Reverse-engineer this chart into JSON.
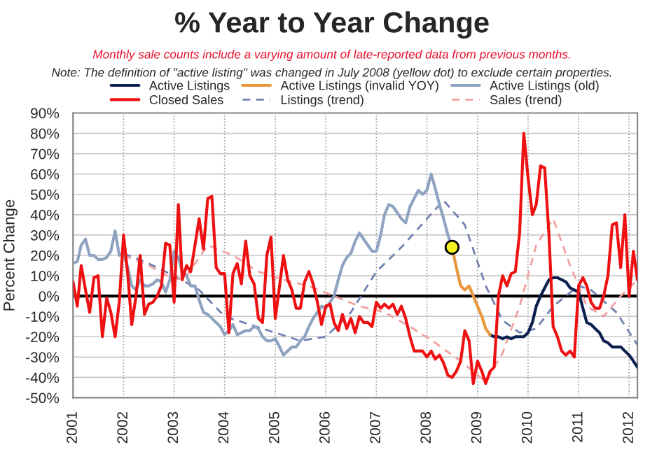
{
  "chart_data": {
    "type": "line",
    "title": "% Year to Year Change",
    "subtitle": "Monthly sale counts include a varying amount of late-reported data from previous months.",
    "annotations": [
      "Note: The definition of \"active listing\" was changed in July 2008 (yellow dot) to exclude certain properties."
    ],
    "ylabel": "Percent Change",
    "xlim": [
      "2001-01",
      "2012-03"
    ],
    "xticks": [
      {
        "value": "2001-01",
        "label": "2001"
      },
      {
        "value": "2002-01",
        "label": "2002"
      },
      {
        "value": "2003-01",
        "label": "2003"
      },
      {
        "value": "2004-01",
        "label": "2004"
      },
      {
        "value": "2005-01",
        "label": "2005"
      },
      {
        "value": "2006-01",
        "label": "2006"
      },
      {
        "value": "2007-01",
        "label": "2007"
      },
      {
        "value": "2008-01",
        "label": "2008"
      },
      {
        "value": "2009-01",
        "label": "2009"
      },
      {
        "value": "2010-01",
        "label": "2010"
      },
      {
        "value": "2011-01",
        "label": "2011"
      },
      {
        "value": "2012-01",
        "label": "2012"
      }
    ],
    "ylim": [
      -50,
      90
    ],
    "yticks": [
      {
        "value": -50,
        "label": "-50%"
      },
      {
        "value": -40,
        "label": "-40%"
      },
      {
        "value": -30,
        "label": "-30%"
      },
      {
        "value": -20,
        "label": "-20%"
      },
      {
        "value": -10,
        "label": "-10%"
      },
      {
        "value": 0,
        "label": "0%"
      },
      {
        "value": 10,
        "label": "10%"
      },
      {
        "value": 20,
        "label": "20%"
      },
      {
        "value": 30,
        "label": "30%"
      },
      {
        "value": 40,
        "label": "40%"
      },
      {
        "value": 50,
        "label": "50%"
      },
      {
        "value": 60,
        "label": "60%"
      },
      {
        "value": 70,
        "label": "70%"
      },
      {
        "value": 80,
        "label": "80%"
      },
      {
        "value": 90,
        "label": "90%"
      }
    ],
    "grid": true,
    "legend": "top",
    "x": [
      "2001-01",
      "2001-02",
      "2001-03",
      "2001-04",
      "2001-05",
      "2001-06",
      "2001-07",
      "2001-08",
      "2001-09",
      "2001-10",
      "2001-11",
      "2001-12",
      "2002-01",
      "2002-02",
      "2002-03",
      "2002-04",
      "2002-05",
      "2002-06",
      "2002-07",
      "2002-08",
      "2002-09",
      "2002-10",
      "2002-11",
      "2002-12",
      "2003-01",
      "2003-02",
      "2003-03",
      "2003-04",
      "2003-05",
      "2003-06",
      "2003-07",
      "2003-08",
      "2003-09",
      "2003-10",
      "2003-11",
      "2003-12",
      "2004-01",
      "2004-02",
      "2004-03",
      "2004-04",
      "2004-05",
      "2004-06",
      "2004-07",
      "2004-08",
      "2004-09",
      "2004-10",
      "2004-11",
      "2004-12",
      "2005-01",
      "2005-02",
      "2005-03",
      "2005-04",
      "2005-05",
      "2005-06",
      "2005-07",
      "2005-08",
      "2005-09",
      "2005-10",
      "2005-11",
      "2005-12",
      "2006-01",
      "2006-02",
      "2006-03",
      "2006-04",
      "2006-05",
      "2006-06",
      "2006-07",
      "2006-08",
      "2006-09",
      "2006-10",
      "2006-11",
      "2006-12",
      "2007-01",
      "2007-02",
      "2007-03",
      "2007-04",
      "2007-05",
      "2007-06",
      "2007-07",
      "2007-08",
      "2007-09",
      "2007-10",
      "2007-11",
      "2007-12",
      "2008-01",
      "2008-02",
      "2008-03",
      "2008-04",
      "2008-05",
      "2008-06",
      "2008-07",
      "2008-08",
      "2008-09",
      "2008-10",
      "2008-11",
      "2008-12",
      "2009-01",
      "2009-02",
      "2009-03",
      "2009-04",
      "2009-05",
      "2009-06",
      "2009-07",
      "2009-08",
      "2009-09",
      "2009-10",
      "2009-11",
      "2009-12",
      "2010-01",
      "2010-02",
      "2010-03",
      "2010-04",
      "2010-05",
      "2010-06",
      "2010-07",
      "2010-08",
      "2010-09",
      "2010-10",
      "2010-11",
      "2010-12",
      "2011-01",
      "2011-02",
      "2011-03",
      "2011-04",
      "2011-05",
      "2011-06",
      "2011-07",
      "2011-08",
      "2011-09",
      "2011-10",
      "2011-11",
      "2011-12",
      "2012-01",
      "2012-02",
      "2012-03"
    ],
    "ref_lines": [
      {
        "axis": "y",
        "value": 0,
        "color": "#000000"
      }
    ],
    "series": [
      {
        "name": "Active Listings",
        "color": "#0d1f4f",
        "x": [
          "2009-04",
          "2009-05",
          "2009-06",
          "2009-07",
          "2009-08",
          "2009-09",
          "2009-10",
          "2009-11",
          "2009-12",
          "2010-01",
          "2010-02",
          "2010-03",
          "2010-04",
          "2010-05",
          "2010-06",
          "2010-07",
          "2010-08",
          "2010-09",
          "2010-10",
          "2010-11",
          "2010-12",
          "2011-01",
          "2011-02",
          "2011-03",
          "2011-04",
          "2011-05",
          "2011-06",
          "2011-07",
          "2011-08",
          "2011-09",
          "2011-10",
          "2011-11",
          "2011-12",
          "2012-01",
          "2012-02",
          "2012-03"
        ],
        "values": [
          -19,
          -20,
          -20,
          -21,
          -20,
          -21,
          -20,
          -20,
          -20,
          -18,
          -13,
          -5,
          0,
          4,
          8,
          9,
          9,
          8,
          7,
          4,
          3,
          2,
          -6,
          -13,
          -14,
          -16,
          -18,
          -22,
          -23,
          -25,
          -25,
          -25,
          -27,
          -29,
          -32,
          -35
        ]
      },
      {
        "name": "Active Listings (invalid YOY)",
        "color": "#e8973a",
        "x": [
          "2008-07",
          "2008-08",
          "2008-09",
          "2008-10",
          "2008-11",
          "2008-12",
          "2009-01",
          "2009-02",
          "2009-03",
          "2009-04"
        ],
        "values": [
          24,
          14,
          5,
          3,
          5,
          0,
          -5,
          -10,
          -16,
          -19
        ]
      },
      {
        "name": "Active Listings (old)",
        "color": "#8fa3c0",
        "values": [
          16,
          17,
          25,
          28,
          20,
          20,
          18,
          18,
          19,
          22,
          32,
          20,
          21,
          14,
          5,
          3,
          8,
          5,
          5,
          6,
          8,
          7,
          2,
          8,
          22,
          19,
          12,
          10,
          5,
          5,
          -2,
          -8,
          -9,
          -11,
          -13,
          -15,
          -19,
          -17,
          -14,
          -19,
          -18,
          -17,
          -17,
          -15,
          -16,
          -20,
          -22,
          -22,
          -21,
          -25,
          -29,
          -27,
          -25,
          -25,
          -22,
          -20,
          -15,
          -11,
          -8,
          -5,
          -6,
          -3,
          0,
          8,
          15,
          19,
          21,
          27,
          31,
          28,
          25,
          22,
          22,
          30,
          40,
          45,
          44,
          41,
          38,
          36,
          44,
          48,
          52,
          50,
          52,
          60,
          53,
          45,
          38,
          30,
          24,
          null,
          null,
          null,
          null,
          null,
          null,
          null,
          null,
          null,
          null,
          null,
          null,
          null,
          null,
          null,
          null,
          null,
          null,
          null,
          null,
          null,
          null,
          null,
          null,
          null,
          null,
          null,
          null,
          null,
          null,
          null,
          null,
          null,
          null,
          null,
          null,
          null,
          null,
          null,
          null,
          null,
          null,
          null,
          null
        ]
      },
      {
        "name": "Closed Sales",
        "color": "#ee1111",
        "values": [
          7,
          -5,
          15,
          3,
          -8,
          9,
          10,
          -20,
          -1,
          -8,
          -20,
          -3,
          30,
          10,
          -14,
          0,
          20,
          -9,
          -4,
          -3,
          0,
          5,
          26,
          25,
          -3,
          45,
          8,
          15,
          12,
          25,
          38,
          23,
          48,
          49,
          14,
          11,
          11,
          -18,
          11,
          16,
          6,
          27,
          10,
          6,
          -11,
          -13,
          20,
          29,
          -11,
          5,
          20,
          8,
          3,
          -6,
          -6,
          7,
          12,
          6,
          -3,
          -14,
          -5,
          -4,
          -13,
          -17,
          -9,
          -16,
          -11,
          -18,
          -10,
          -13,
          -13,
          -15,
          -3,
          -6,
          -4,
          -6,
          -4,
          -9,
          -5,
          -11,
          -20,
          -27,
          -27,
          -27,
          -30,
          -27,
          -31,
          -29,
          -33,
          -39,
          -40,
          -37,
          -32,
          -17,
          -22,
          -43,
          -32,
          -37,
          -43,
          -37,
          -35,
          0,
          10,
          5,
          11,
          12,
          31,
          80,
          58,
          40,
          45,
          64,
          63,
          30,
          -15,
          -20,
          -27,
          -29,
          -27,
          -30,
          5,
          9,
          5,
          -3,
          -6,
          -6,
          0,
          10,
          35,
          36,
          14,
          40,
          0,
          22,
          8
        ]
      },
      {
        "name": "Listings (trend)",
        "color": "#7080b0",
        "line_style": "dashed",
        "x": [
          "2002-01",
          "2002-07",
          "2003-01",
          "2003-07",
          "2004-01",
          "2004-07",
          "2005-01",
          "2005-07",
          "2006-01",
          "2006-07",
          "2007-01",
          "2007-07",
          "2008-01",
          "2008-05",
          "2008-10",
          "2009-03",
          "2009-07",
          "2009-11",
          "2010-03",
          "2010-07",
          "2011-01",
          "2011-04",
          "2011-10",
          "2012-03"
        ],
        "values": [
          21,
          16,
          10,
          3,
          -10,
          -14,
          -18,
          -22,
          -20,
          -8,
          12,
          24,
          38,
          47,
          35,
          5,
          -12,
          -18,
          -16,
          -5,
          5,
          3,
          -8,
          -24
        ]
      },
      {
        "name": "Sales (trend)",
        "color": "#f0a0a0",
        "line_style": "dashed",
        "x": [
          "2002-01",
          "2002-07",
          "2003-01",
          "2003-04",
          "2003-09",
          "2004-03",
          "2004-09",
          "2005-03",
          "2005-09",
          "2006-03",
          "2006-09",
          "2007-03",
          "2007-09",
          "2008-03",
          "2008-09",
          "2009-03",
          "2009-07",
          "2009-11",
          "2010-03",
          "2010-07",
          "2010-11",
          "2011-03",
          "2011-07",
          "2011-11",
          "2012-03"
        ],
        "values": [
          20,
          15,
          8,
          10,
          25,
          20,
          12,
          8,
          5,
          0,
          -5,
          -8,
          -15,
          -23,
          -32,
          -42,
          -28,
          -5,
          25,
          38,
          15,
          -5,
          -10,
          0,
          8
        ]
      },
      {
        "type": "scatter",
        "color": "#f5f020",
        "marker": "circle",
        "x": [
          "2008-07"
        ],
        "values": [
          24
        ]
      }
    ]
  }
}
